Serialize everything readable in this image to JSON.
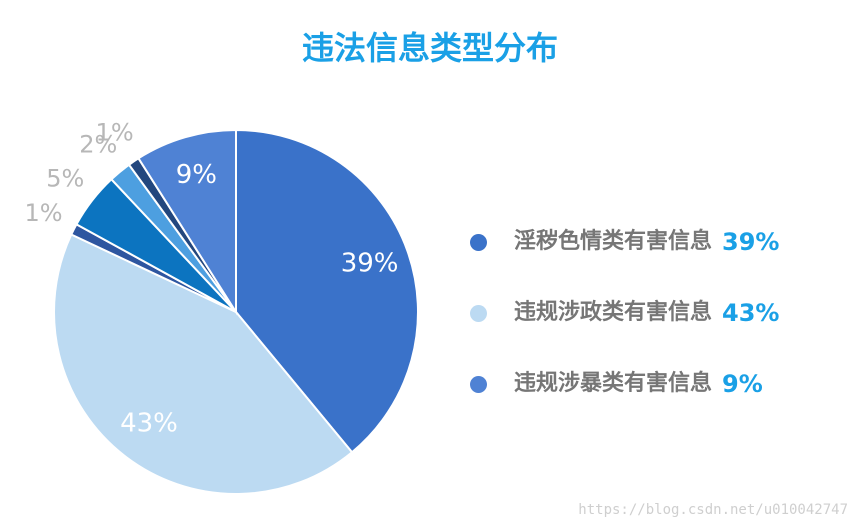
{
  "colors": {
    "title": "#1aa0e6",
    "accent": "#1aa0e6",
    "outside_label": "#b7b7b7",
    "inside_label": "#ffffff"
  },
  "chart_data": {
    "type": "pie",
    "title": "违法信息类型分布",
    "slices": [
      {
        "label": "淫秽色情类有害信息",
        "value": 39,
        "display": "39%",
        "color": "#3a72c9",
        "label_position": "inside"
      },
      {
        "label": "违规涉政类有害信息",
        "value": 43,
        "display": "43%",
        "color": "#bcdaf2",
        "label_position": "inside"
      },
      {
        "label": "",
        "value": 1,
        "display": "1%",
        "color": "#2e56a0",
        "label_position": "outside"
      },
      {
        "label": "",
        "value": 5,
        "display": "5%",
        "color": "#0c74c0",
        "label_position": "outside"
      },
      {
        "label": "",
        "value": 2,
        "display": "2%",
        "color": "#4d9fe0",
        "label_position": "outside"
      },
      {
        "label": "",
        "value": 1,
        "display": "1%",
        "color": "#23477e",
        "label_position": "outside"
      },
      {
        "label": "违规涉暴类有害信息",
        "value": 9,
        "display": "9%",
        "color": "#4f82d4",
        "label_position": "inside"
      }
    ],
    "legend": [
      {
        "label": "淫秽色情类有害信息",
        "value": "39%",
        "color": "#3a72c9"
      },
      {
        "label": "违规涉政类有害信息",
        "value": "43%",
        "color": "#bcdaf2"
      },
      {
        "label": "违规涉暴类有害信息",
        "value": "9%",
        "color": "#4f82d4"
      }
    ],
    "legend_position": "right"
  },
  "watermark": "https://blog.csdn.net/u010042747"
}
